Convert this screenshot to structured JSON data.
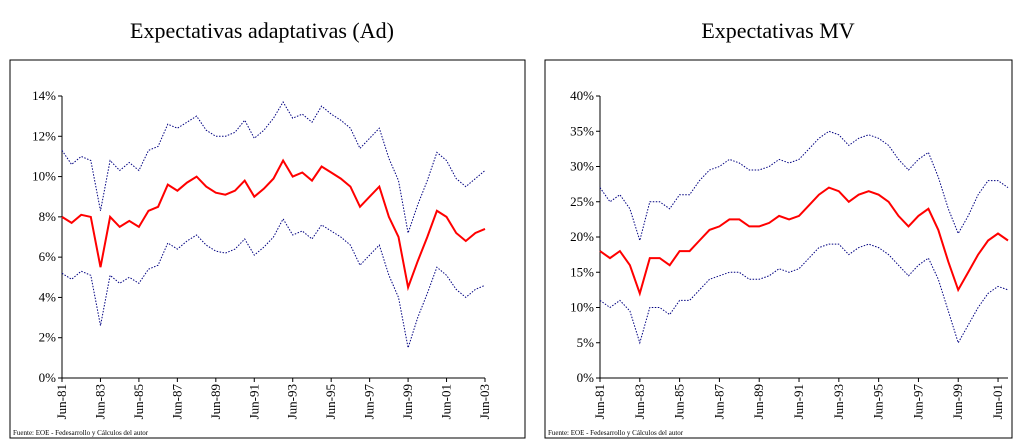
{
  "chart_data": [
    {
      "type": "line",
      "title": "Expectativas adaptativas (Ad)",
      "note": "Fuente: EOE - Fedesarrollo y Cálculos del autor",
      "categories": [
        "Jun-81",
        null,
        null,
        null,
        "Jun-83",
        null,
        null,
        null,
        "Jun-85",
        null,
        null,
        null,
        "Jun-87",
        null,
        null,
        null,
        "Jun-89",
        null,
        null,
        null,
        "Jun-91",
        null,
        null,
        null,
        "Jun-93",
        null,
        null,
        null,
        "Jun-95",
        null,
        null,
        null,
        "Jun-97",
        null,
        null,
        null,
        "Jun-99",
        null,
        null,
        null,
        "Jun-01",
        null,
        null,
        null,
        "Jun-03"
      ],
      "ylim": [
        0,
        14
      ],
      "yticks": [
        {
          "value": 0,
          "label": "0%"
        },
        {
          "value": 2,
          "label": "2%"
        },
        {
          "value": 4,
          "label": "4%"
        },
        {
          "value": 6,
          "label": "6%"
        },
        {
          "value": 8,
          "label": "8%"
        },
        {
          "value": 10,
          "label": "10%"
        },
        {
          "value": 12,
          "label": "12%"
        },
        {
          "value": 14,
          "label": "14%"
        }
      ],
      "series": [
        {
          "color": "#000080",
          "dash": true,
          "values": [
            11.3,
            10.6,
            11.0,
            10.8,
            8.3,
            10.8,
            10.3,
            10.7,
            10.3,
            11.3,
            11.5,
            12.6,
            12.4,
            12.7,
            13.0,
            12.3,
            12.0,
            12.0,
            12.2,
            12.8,
            11.9,
            12.3,
            12.9,
            13.7,
            12.9,
            13.1,
            12.7,
            13.5,
            13.1,
            12.8,
            12.4,
            11.4,
            11.9,
            12.4,
            10.9,
            9.8,
            7.2,
            8.6,
            9.8,
            11.2,
            10.8,
            9.9,
            9.5,
            9.9,
            10.3
          ]
        },
        {
          "color": "#ff0000",
          "dash": false,
          "values": [
            8.0,
            7.7,
            8.1,
            8.0,
            5.5,
            8.0,
            7.5,
            7.8,
            7.5,
            8.3,
            8.5,
            9.6,
            9.3,
            9.7,
            10.0,
            9.5,
            9.2,
            9.1,
            9.3,
            9.8,
            9.0,
            9.4,
            9.9,
            10.8,
            10.0,
            10.2,
            9.8,
            10.5,
            10.2,
            9.9,
            9.5,
            8.5,
            9.0,
            9.5,
            8.0,
            7.0,
            4.5,
            5.8,
            7.0,
            8.3,
            8.0,
            7.2,
            6.8,
            7.2,
            7.4
          ]
        },
        {
          "color": "#000080",
          "dash": true,
          "values": [
            5.2,
            4.9,
            5.3,
            5.1,
            2.6,
            5.1,
            4.7,
            5.0,
            4.7,
            5.4,
            5.6,
            6.7,
            6.4,
            6.8,
            7.1,
            6.6,
            6.3,
            6.2,
            6.4,
            6.9,
            6.1,
            6.5,
            7.0,
            7.9,
            7.1,
            7.3,
            6.9,
            7.6,
            7.3,
            7.0,
            6.6,
            5.6,
            6.1,
            6.6,
            5.1,
            4.0,
            1.5,
            3.0,
            4.2,
            5.5,
            5.1,
            4.4,
            4.0,
            4.4,
            4.6
          ]
        }
      ]
    },
    {
      "type": "line",
      "title": "Expectativas MV",
      "note": "Fuente: EOE - Fedesarrollo y Cálculos del autor",
      "categories": [
        "Jun-81",
        null,
        null,
        null,
        "Jun-83",
        null,
        null,
        null,
        "Jun-85",
        null,
        null,
        null,
        "Jun-87",
        null,
        null,
        null,
        "Jun-89",
        null,
        null,
        null,
        "Jun-91",
        null,
        null,
        null,
        "Jun-93",
        null,
        null,
        null,
        "Jun-95",
        null,
        null,
        null,
        "Jun-97",
        null,
        null,
        null,
        "Jun-99",
        null,
        null,
        null,
        "Jun-01",
        null
      ],
      "ylim": [
        0,
        40
      ],
      "yticks": [
        {
          "value": 0,
          "label": "0%"
        },
        {
          "value": 5,
          "label": "5%"
        },
        {
          "value": 10,
          "label": "10%"
        },
        {
          "value": 15,
          "label": "15%"
        },
        {
          "value": 20,
          "label": "20%"
        },
        {
          "value": 25,
          "label": "25%"
        },
        {
          "value": 30,
          "label": "30%"
        },
        {
          "value": 35,
          "label": "35%"
        },
        {
          "value": 40,
          "label": "40%"
        }
      ],
      "series": [
        {
          "color": "#000080",
          "dash": true,
          "values": [
            27,
            25,
            26,
            24,
            19.5,
            25,
            25,
            24,
            26,
            26,
            28,
            29.5,
            30,
            31,
            30.5,
            29.5,
            29.5,
            30,
            31,
            30.5,
            31,
            32.5,
            34,
            35,
            34.5,
            33,
            34,
            34.5,
            34,
            33,
            31,
            29.5,
            31,
            32,
            28.5,
            24,
            20.5,
            23,
            26,
            28,
            28,
            27
          ]
        },
        {
          "color": "#ff0000",
          "dash": false,
          "values": [
            18,
            17,
            18,
            16,
            12,
            17,
            17,
            16,
            18,
            18,
            19.5,
            21,
            21.5,
            22.5,
            22.5,
            21.5,
            21.5,
            22,
            23,
            22.5,
            23,
            24.5,
            26,
            27,
            26.5,
            25,
            26,
            26.5,
            26,
            25,
            23,
            21.5,
            23,
            24,
            21,
            16.5,
            12.5,
            15,
            17.5,
            19.5,
            20.5,
            19.5
          ]
        },
        {
          "color": "#000080",
          "dash": true,
          "values": [
            11,
            10,
            11,
            9.5,
            5,
            10,
            10,
            9,
            11,
            11,
            12.5,
            14,
            14.5,
            15,
            15,
            14,
            14,
            14.5,
            15.5,
            15,
            15.5,
            17,
            18.5,
            19,
            19,
            17.5,
            18.5,
            19,
            18.5,
            17.5,
            16,
            14.5,
            16,
            17,
            14,
            9.5,
            5,
            7.5,
            10,
            12,
            13,
            12.5
          ]
        }
      ]
    }
  ]
}
